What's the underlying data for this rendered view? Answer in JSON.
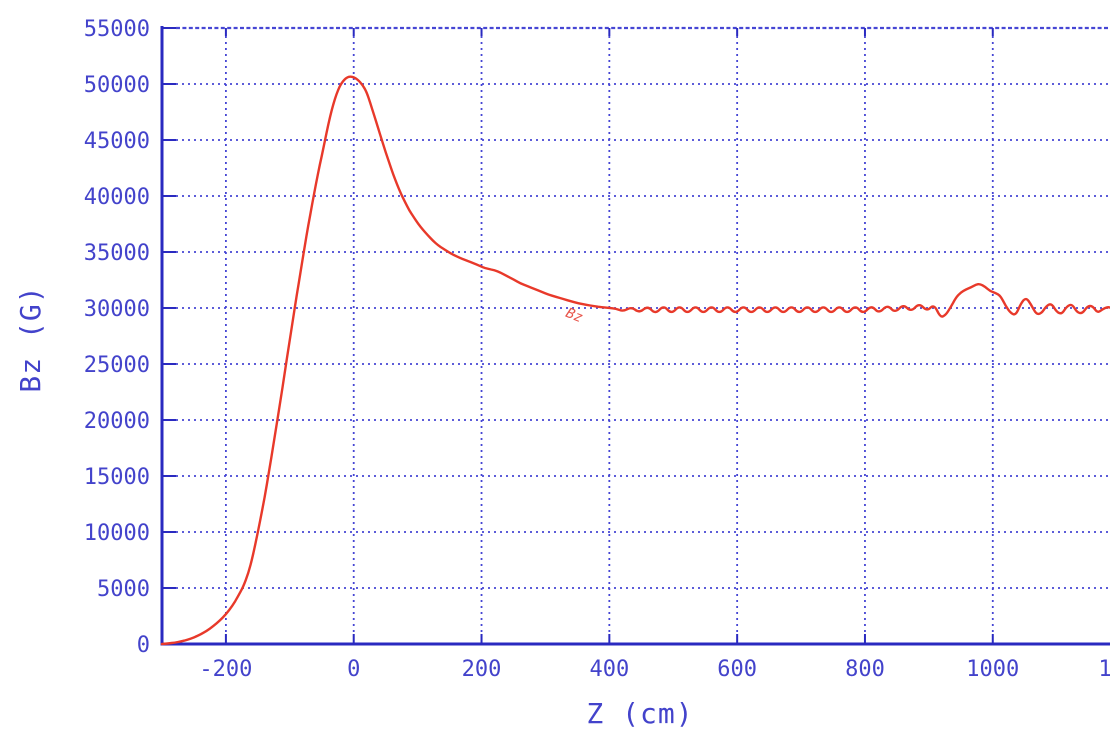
{
  "figure": {
    "background": "#ffffff",
    "colors": {
      "axis": "#2a2ac0",
      "grid": "#4646d4",
      "labels": "#4343cb",
      "curve": "#e8392a"
    }
  },
  "chart_data": {
    "type": "line",
    "title": "",
    "xlabel": "Z (cm)",
    "ylabel": "Bz (G)",
    "xlim": [
      -300,
      1185
    ],
    "ylim": [
      0,
      55000
    ],
    "grid": "dotted",
    "legend_position": "none",
    "x_ticks": [
      -200,
      0,
      200,
      400,
      600,
      800,
      1000
    ],
    "x_tick_labels": [
      "-200",
      "0",
      "200",
      "400",
      "600",
      "800",
      "1000"
    ],
    "x_partial_right_label": "1",
    "y_ticks": [
      0,
      5000,
      10000,
      15000,
      20000,
      25000,
      30000,
      35000,
      40000,
      45000,
      50000,
      55000
    ],
    "y_tick_labels": [
      "0",
      "5000",
      "10000",
      "15000",
      "20000",
      "25000",
      "30000",
      "35000",
      "40000",
      "45000",
      "50000",
      "55000"
    ],
    "annotations": [
      {
        "text": "Bz",
        "x": 345,
        "y": 28600,
        "rotation_deg": 22,
        "color": "#e8544a"
      }
    ],
    "series": [
      {
        "name": "Bz",
        "color": "#e8392a",
        "points": [
          [
            -300,
            0
          ],
          [
            -290,
            50
          ],
          [
            -280,
            120
          ],
          [
            -270,
            230
          ],
          [
            -260,
            380
          ],
          [
            -250,
            580
          ],
          [
            -240,
            840
          ],
          [
            -230,
            1170
          ],
          [
            -220,
            1580
          ],
          [
            -210,
            2070
          ],
          [
            -200,
            2650
          ],
          [
            -190,
            3400
          ],
          [
            -181,
            4250
          ],
          [
            -173,
            5100
          ],
          [
            -165,
            6300
          ],
          [
            -158,
            7800
          ],
          [
            -150,
            10000
          ],
          [
            -143,
            12000
          ],
          [
            -136,
            14200
          ],
          [
            -129,
            16600
          ],
          [
            -122,
            19100
          ],
          [
            -115,
            21600
          ],
          [
            -108,
            24200
          ],
          [
            -101,
            26800
          ],
          [
            -95,
            29000
          ],
          [
            -89,
            31200
          ],
          [
            -83,
            33300
          ],
          [
            -77,
            35400
          ],
          [
            -71,
            37400
          ],
          [
            -65,
            39300
          ],
          [
            -59,
            41100
          ],
          [
            -53,
            42800
          ],
          [
            -47,
            44400
          ],
          [
            -42,
            45800
          ],
          [
            -37,
            47100
          ],
          [
            -32,
            48200
          ],
          [
            -27,
            49100
          ],
          [
            -22,
            49800
          ],
          [
            -17,
            50250
          ],
          [
            -12,
            50530
          ],
          [
            -7,
            50660
          ],
          [
            -2,
            50640
          ],
          [
            3,
            50520
          ],
          [
            8,
            50300
          ],
          [
            14,
            49900
          ],
          [
            20,
            49300
          ],
          [
            26,
            48300
          ],
          [
            32,
            47200
          ],
          [
            38,
            46100
          ],
          [
            44,
            45000
          ],
          [
            50,
            43900
          ],
          [
            56,
            42900
          ],
          [
            62,
            41900
          ],
          [
            68,
            41000
          ],
          [
            74,
            40200
          ],
          [
            80,
            39500
          ],
          [
            87,
            38700
          ],
          [
            94,
            38100
          ],
          [
            101,
            37500
          ],
          [
            108,
            37000
          ],
          [
            116,
            36500
          ],
          [
            124,
            36000
          ],
          [
            132,
            35600
          ],
          [
            140,
            35300
          ],
          [
            148,
            35000
          ],
          [
            156,
            34750
          ],
          [
            165,
            34500
          ],
          [
            174,
            34300
          ],
          [
            183,
            34100
          ],
          [
            192,
            33900
          ],
          [
            201,
            33650
          ],
          [
            210,
            33500
          ],
          [
            220,
            33380
          ],
          [
            230,
            33150
          ],
          [
            240,
            32850
          ],
          [
            250,
            32550
          ],
          [
            261,
            32200
          ],
          [
            272,
            31950
          ],
          [
            283,
            31700
          ],
          [
            294,
            31450
          ],
          [
            305,
            31200
          ],
          [
            316,
            31000
          ],
          [
            328,
            30800
          ],
          [
            340,
            30600
          ],
          [
            352,
            30420
          ],
          [
            364,
            30280
          ],
          [
            376,
            30170
          ],
          [
            388,
            30070
          ],
          [
            400,
            30000
          ],
          [
            410,
            29950
          ],
          [
            422,
            29700
          ],
          [
            435,
            30100
          ],
          [
            447,
            29550
          ],
          [
            460,
            30200
          ],
          [
            472,
            29450
          ],
          [
            485,
            30250
          ],
          [
            497,
            29450
          ],
          [
            510,
            30250
          ],
          [
            522,
            29450
          ],
          [
            535,
            30250
          ],
          [
            547,
            29450
          ],
          [
            560,
            30250
          ],
          [
            572,
            29450
          ],
          [
            585,
            30250
          ],
          [
            597,
            29450
          ],
          [
            610,
            30250
          ],
          [
            622,
            29450
          ],
          [
            635,
            30250
          ],
          [
            647,
            29450
          ],
          [
            660,
            30250
          ],
          [
            672,
            29450
          ],
          [
            685,
            30250
          ],
          [
            697,
            29450
          ],
          [
            710,
            30250
          ],
          [
            722,
            29450
          ],
          [
            735,
            30250
          ],
          [
            747,
            29450
          ],
          [
            760,
            30250
          ],
          [
            772,
            29450
          ],
          [
            785,
            30250
          ],
          [
            797,
            29450
          ],
          [
            810,
            30250
          ],
          [
            822,
            29500
          ],
          [
            835,
            30300
          ],
          [
            847,
            29550
          ],
          [
            860,
            30350
          ],
          [
            872,
            29650
          ],
          [
            885,
            30450
          ],
          [
            897,
            29700
          ],
          [
            908,
            30350
          ],
          [
            918,
            29150
          ],
          [
            926,
            29350
          ],
          [
            934,
            30050
          ],
          [
            942,
            30900
          ],
          [
            950,
            31400
          ],
          [
            958,
            31650
          ],
          [
            966,
            31850
          ],
          [
            974,
            32100
          ],
          [
            980,
            32150
          ],
          [
            988,
            31900
          ],
          [
            996,
            31500
          ],
          [
            1004,
            31350
          ],
          [
            1012,
            31100
          ],
          [
            1020,
            30200
          ],
          [
            1028,
            29550
          ],
          [
            1036,
            29350
          ],
          [
            1044,
            30400
          ],
          [
            1052,
            30950
          ],
          [
            1060,
            30300
          ],
          [
            1068,
            29450
          ],
          [
            1076,
            29500
          ],
          [
            1084,
            30200
          ],
          [
            1092,
            30400
          ],
          [
            1100,
            29650
          ],
          [
            1108,
            29450
          ],
          [
            1116,
            30150
          ],
          [
            1124,
            30350
          ],
          [
            1132,
            29600
          ],
          [
            1140,
            29500
          ],
          [
            1148,
            30150
          ],
          [
            1156,
            30200
          ],
          [
            1164,
            29550
          ],
          [
            1172,
            29900
          ],
          [
            1180,
            30100
          ],
          [
            1185,
            30000
          ]
        ]
      }
    ]
  }
}
